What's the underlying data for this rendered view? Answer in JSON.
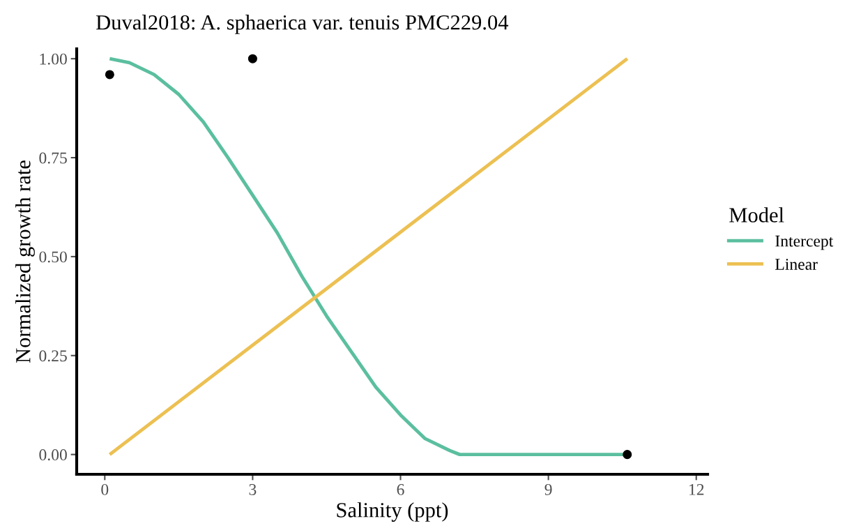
{
  "chart_data": {
    "type": "line",
    "title": "Duval2018: A. sphaerica var. tenuis PMC229.04",
    "xlabel": "Salinity (ppt)",
    "ylabel": "Normalized growth rate",
    "legend_title": "Model",
    "legend": "right",
    "grid": false,
    "marker": "none",
    "line_style": "solid",
    "xlim": [
      -0.57,
      12.23
    ],
    "ylim": [
      -0.05,
      1.025
    ],
    "xticks": [
      0,
      3,
      6,
      9,
      12
    ],
    "yticks": [
      {
        "value": 0,
        "label": "0.00"
      },
      {
        "value": 0.25,
        "label": "0.25"
      },
      {
        "value": 0.5,
        "label": "0.50"
      },
      {
        "value": 0.75,
        "label": "0.75"
      },
      {
        "value": 1,
        "label": "1.00"
      }
    ],
    "series": [
      {
        "name": "Intercept",
        "color": "#5bbf9f",
        "x": [
          0.1,
          0.5,
          1,
          1.5,
          2,
          2.5,
          3,
          3.5,
          4,
          4.5,
          5,
          5.5,
          6,
          6.5,
          7,
          7.2,
          10.6
        ],
        "values": [
          1.0,
          0.99,
          0.96,
          0.91,
          0.84,
          0.75,
          0.655,
          0.56,
          0.45,
          0.35,
          0.26,
          0.17,
          0.1,
          0.04,
          0.01,
          0,
          0
        ]
      },
      {
        "name": "Linear",
        "color": "#ecc052",
        "x": [
          0.1,
          10.6
        ],
        "values": [
          0,
          1
        ]
      },
      {
        "type": "scatter",
        "color": "#000000",
        "marker": "circle",
        "x": [
          0.1,
          3,
          10.6
        ],
        "values": [
          0.96,
          1.0,
          0
        ]
      }
    ]
  }
}
